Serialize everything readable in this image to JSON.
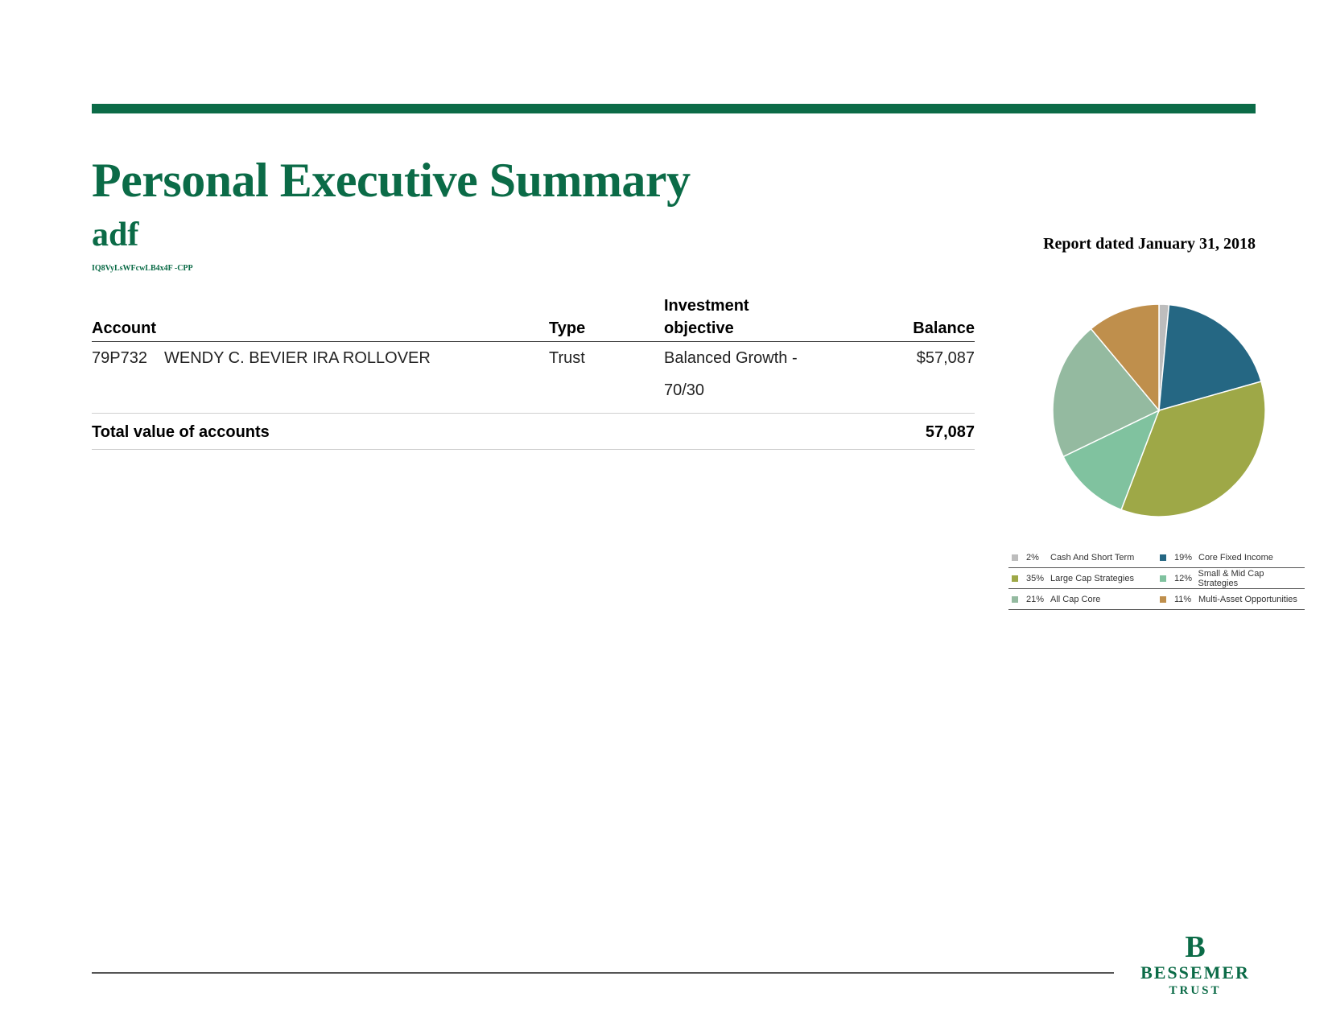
{
  "header": {
    "title": "Personal Executive Summary",
    "client_name": "adf",
    "client_code": "IQ8VyLsWFcwLB4x4F -CPP",
    "report_date": "Report dated January 31, 2018"
  },
  "accounts_table": {
    "headers": {
      "account": "Account",
      "type": "Type",
      "objective_line1": "Investment",
      "objective_line2": "objective",
      "balance": "Balance"
    },
    "rows": [
      {
        "number": "79P732",
        "name": "WENDY C. BEVIER IRA ROLLOVER",
        "type": "Trust",
        "objective_line1": "Balanced Growth -",
        "objective_line2": "70/30",
        "balance": "$57,087"
      }
    ],
    "total_label": "Total value of accounts",
    "total_value": "57,087"
  },
  "chart_data": {
    "type": "pie",
    "slices": [
      {
        "label": "Cash And Short Term",
        "pct_label": "2%",
        "value": 1.5,
        "color": "#bdbdbd"
      },
      {
        "label": "Core Fixed Income",
        "pct_label": "19%",
        "value": 19,
        "color": "#256783"
      },
      {
        "label": "Large Cap Strategies",
        "pct_label": "35%",
        "value": 35,
        "color": "#9ea847"
      },
      {
        "label": "Small & Mid Cap Strategies",
        "pct_label": "12%",
        "value": 12,
        "color": "#80c29f"
      },
      {
        "label": "All Cap Core",
        "pct_label": "21%",
        "value": 21,
        "color": "#94baa0"
      },
      {
        "label": "Multi-Asset Opportunities",
        "pct_label": "11%",
        "value": 11,
        "color": "#bf8f4c"
      }
    ],
    "legend_order": [
      0,
      1,
      2,
      3,
      4,
      5
    ],
    "legend_placement": "bottom"
  },
  "logo": {
    "word1": "BESSEMER",
    "word2": "TRUST"
  }
}
